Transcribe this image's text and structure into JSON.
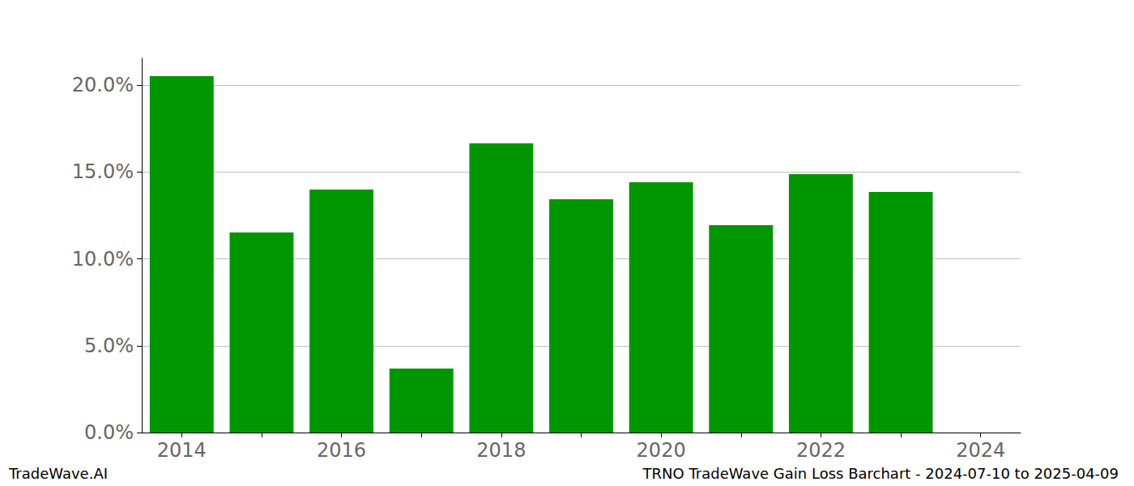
{
  "chart_data": {
    "type": "bar",
    "title": "TRNO TradeWave Gain Loss Barchart - 2024-07-10 to 2025-04-09",
    "annotations": [
      "TradeWave.AI"
    ],
    "categories": [
      "2014",
      null,
      "2016",
      null,
      "2018",
      null,
      "2020",
      null,
      "2022",
      null,
      "2024"
    ],
    "values": [
      20.51,
      11.52,
      13.99,
      3.68,
      16.64,
      13.43,
      14.41,
      11.93,
      14.87,
      13.85,
      0
    ],
    "color": "#009600",
    "ylim": [
      0,
      21.54
    ],
    "yticks": [
      {
        "value": 0,
        "label": "0.0%"
      },
      {
        "value": 5,
        "label": "5.0%"
      },
      {
        "value": 10,
        "label": "10.0%"
      },
      {
        "value": 15,
        "label": "15.0%"
      },
      {
        "value": 20,
        "label": "20.0%"
      }
    ],
    "grid": true
  }
}
